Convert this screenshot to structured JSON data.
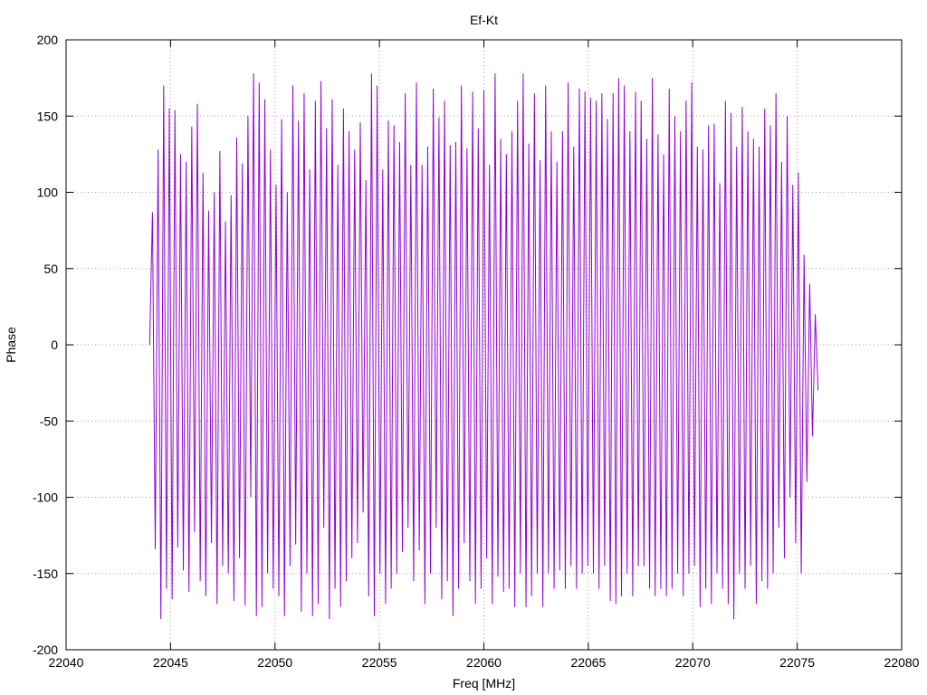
{
  "chart_data": {
    "type": "line",
    "title": "Ef-Kt",
    "xlabel": "Freq [MHz]",
    "ylabel": "Phase",
    "xlim": [
      22040,
      22080
    ],
    "ylim": [
      -200,
      200
    ],
    "xticks": [
      22040,
      22045,
      22050,
      22055,
      22060,
      22065,
      22070,
      22075,
      22080
    ],
    "yticks": [
      -200,
      -150,
      -100,
      -50,
      0,
      50,
      100,
      150,
      200
    ],
    "grid": true,
    "legend": "none",
    "series": [
      {
        "color": "#9400d3",
        "x_start": 22044,
        "x_end": 22076,
        "y_range": [
          -180,
          180
        ],
        "y": [
          0,
          87,
          -134,
          128,
          -180,
          170,
          -160,
          155,
          -167,
          154,
          -133,
          125,
          -148,
          120,
          -162,
          143,
          -123,
          158,
          -155,
          113,
          -165,
          88,
          -130,
          100,
          -170,
          127,
          -145,
          81,
          -150,
          98,
          -168,
          136,
          -140,
          119,
          -171,
          150,
          -100,
          178,
          -178,
          172,
          -172,
          161,
          -150,
          128,
          -160,
          105,
          -165,
          148,
          -178,
          100,
          -145,
          170,
          -131,
          147,
          -175,
          165,
          -150,
          115,
          -178,
          160,
          -170,
          173,
          -120,
          142,
          -180,
          161,
          -160,
          118,
          -172,
          155,
          -155,
          140,
          -140,
          128,
          -130,
          146,
          -110,
          108,
          -165,
          178,
          -178,
          170,
          -150,
          115,
          -170,
          147,
          -160,
          144,
          -150,
          133,
          -136,
          165,
          -120,
          118,
          -155,
          172,
          -135,
          118,
          -170,
          130,
          -150,
          168,
          -120,
          149,
          -167,
          160,
          -155,
          131,
          -178,
          133,
          -160,
          170,
          -130,
          129,
          -155,
          166,
          -170,
          142,
          -160,
          167,
          -140,
          118,
          -170,
          178,
          -152,
          135,
          -162,
          125,
          -160,
          140,
          -172,
          160,
          -150,
          178,
          -172,
          132,
          -165,
          165,
          -150,
          121,
          -172,
          170,
          -150,
          140,
          -160,
          120,
          -148,
          140,
          -160,
          172,
          -145,
          130,
          -160,
          168,
          -150,
          166,
          -145,
          162,
          -150,
          160,
          -160,
          165,
          -145,
          148,
          -168,
          165,
          -170,
          175,
          -165,
          170,
          -150,
          140,
          -165,
          166,
          -145,
          160,
          -145,
          135,
          -160,
          175,
          -165,
          138,
          -160,
          125,
          -165,
          168,
          -160,
          150,
          -150,
          140,
          -165,
          160,
          -150,
          172,
          -145,
          130,
          -172,
          128,
          -160,
          144,
          -170,
          145,
          -150,
          106,
          -160,
          160,
          -170,
          152,
          -180,
          130,
          -150,
          156,
          -160,
          140,
          -145,
          135,
          -170,
          130,
          -155,
          155,
          -160,
          144,
          -150,
          165,
          -120,
          120,
          -140,
          150,
          -100,
          105,
          -130,
          113,
          -150,
          59,
          -90,
          40,
          -60,
          20,
          -30
        ]
      }
    ]
  }
}
